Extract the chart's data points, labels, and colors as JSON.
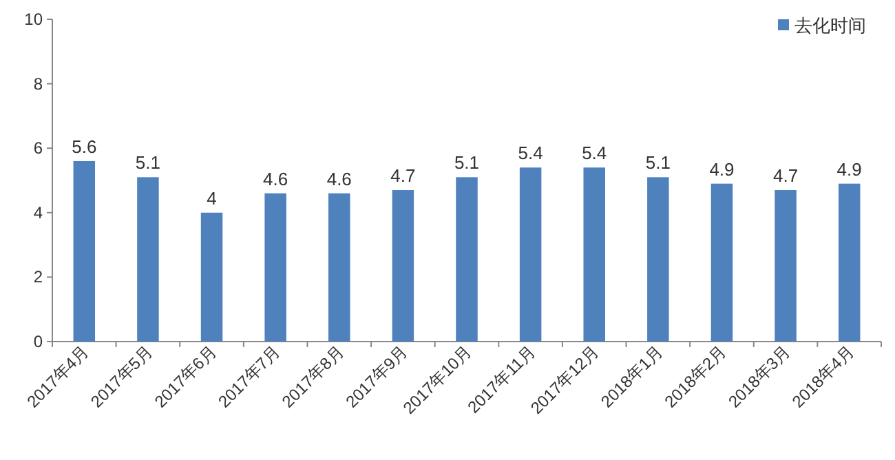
{
  "chart_data": {
    "type": "bar",
    "categories": [
      "2017年4月",
      "2017年5月",
      "2017年6月",
      "2017年7月",
      "2017年8月",
      "2017年9月",
      "2017年10月",
      "2017年11月",
      "2017年12月",
      "2018年1月",
      "2018年2月",
      "2018年3月",
      "2018年4月"
    ],
    "series": [
      {
        "name": "去化时间",
        "color": "#4f81bd",
        "values": [
          5.6,
          5.1,
          4,
          4.6,
          4.6,
          4.7,
          5.1,
          5.4,
          5.4,
          5.1,
          4.9,
          4.7,
          4.9
        ]
      }
    ],
    "ylim": [
      0,
      10
    ],
    "yticks": [
      0,
      2,
      4,
      6,
      8,
      10
    ],
    "grid": false,
    "legend": "top right",
    "data_labels": true
  }
}
